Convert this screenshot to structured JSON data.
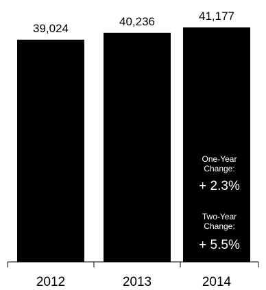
{
  "chart_data": {
    "type": "bar",
    "categories": [
      "2012",
      "2013",
      "2014"
    ],
    "values": [
      39024,
      40236,
      41177
    ],
    "value_labels": [
      "39,024",
      "40,236",
      "41,177"
    ],
    "ylim": [
      0,
      42500
    ],
    "grid": false,
    "bar_color": "#000000",
    "annotations": {
      "one_year_label_line1": "One-Year",
      "one_year_label_line2": "Change:",
      "one_year_value": "+ 2.3%",
      "two_year_label_line1": "Two-Year",
      "two_year_label_line2": "Change:",
      "two_year_value": "+ 5.5%"
    }
  }
}
